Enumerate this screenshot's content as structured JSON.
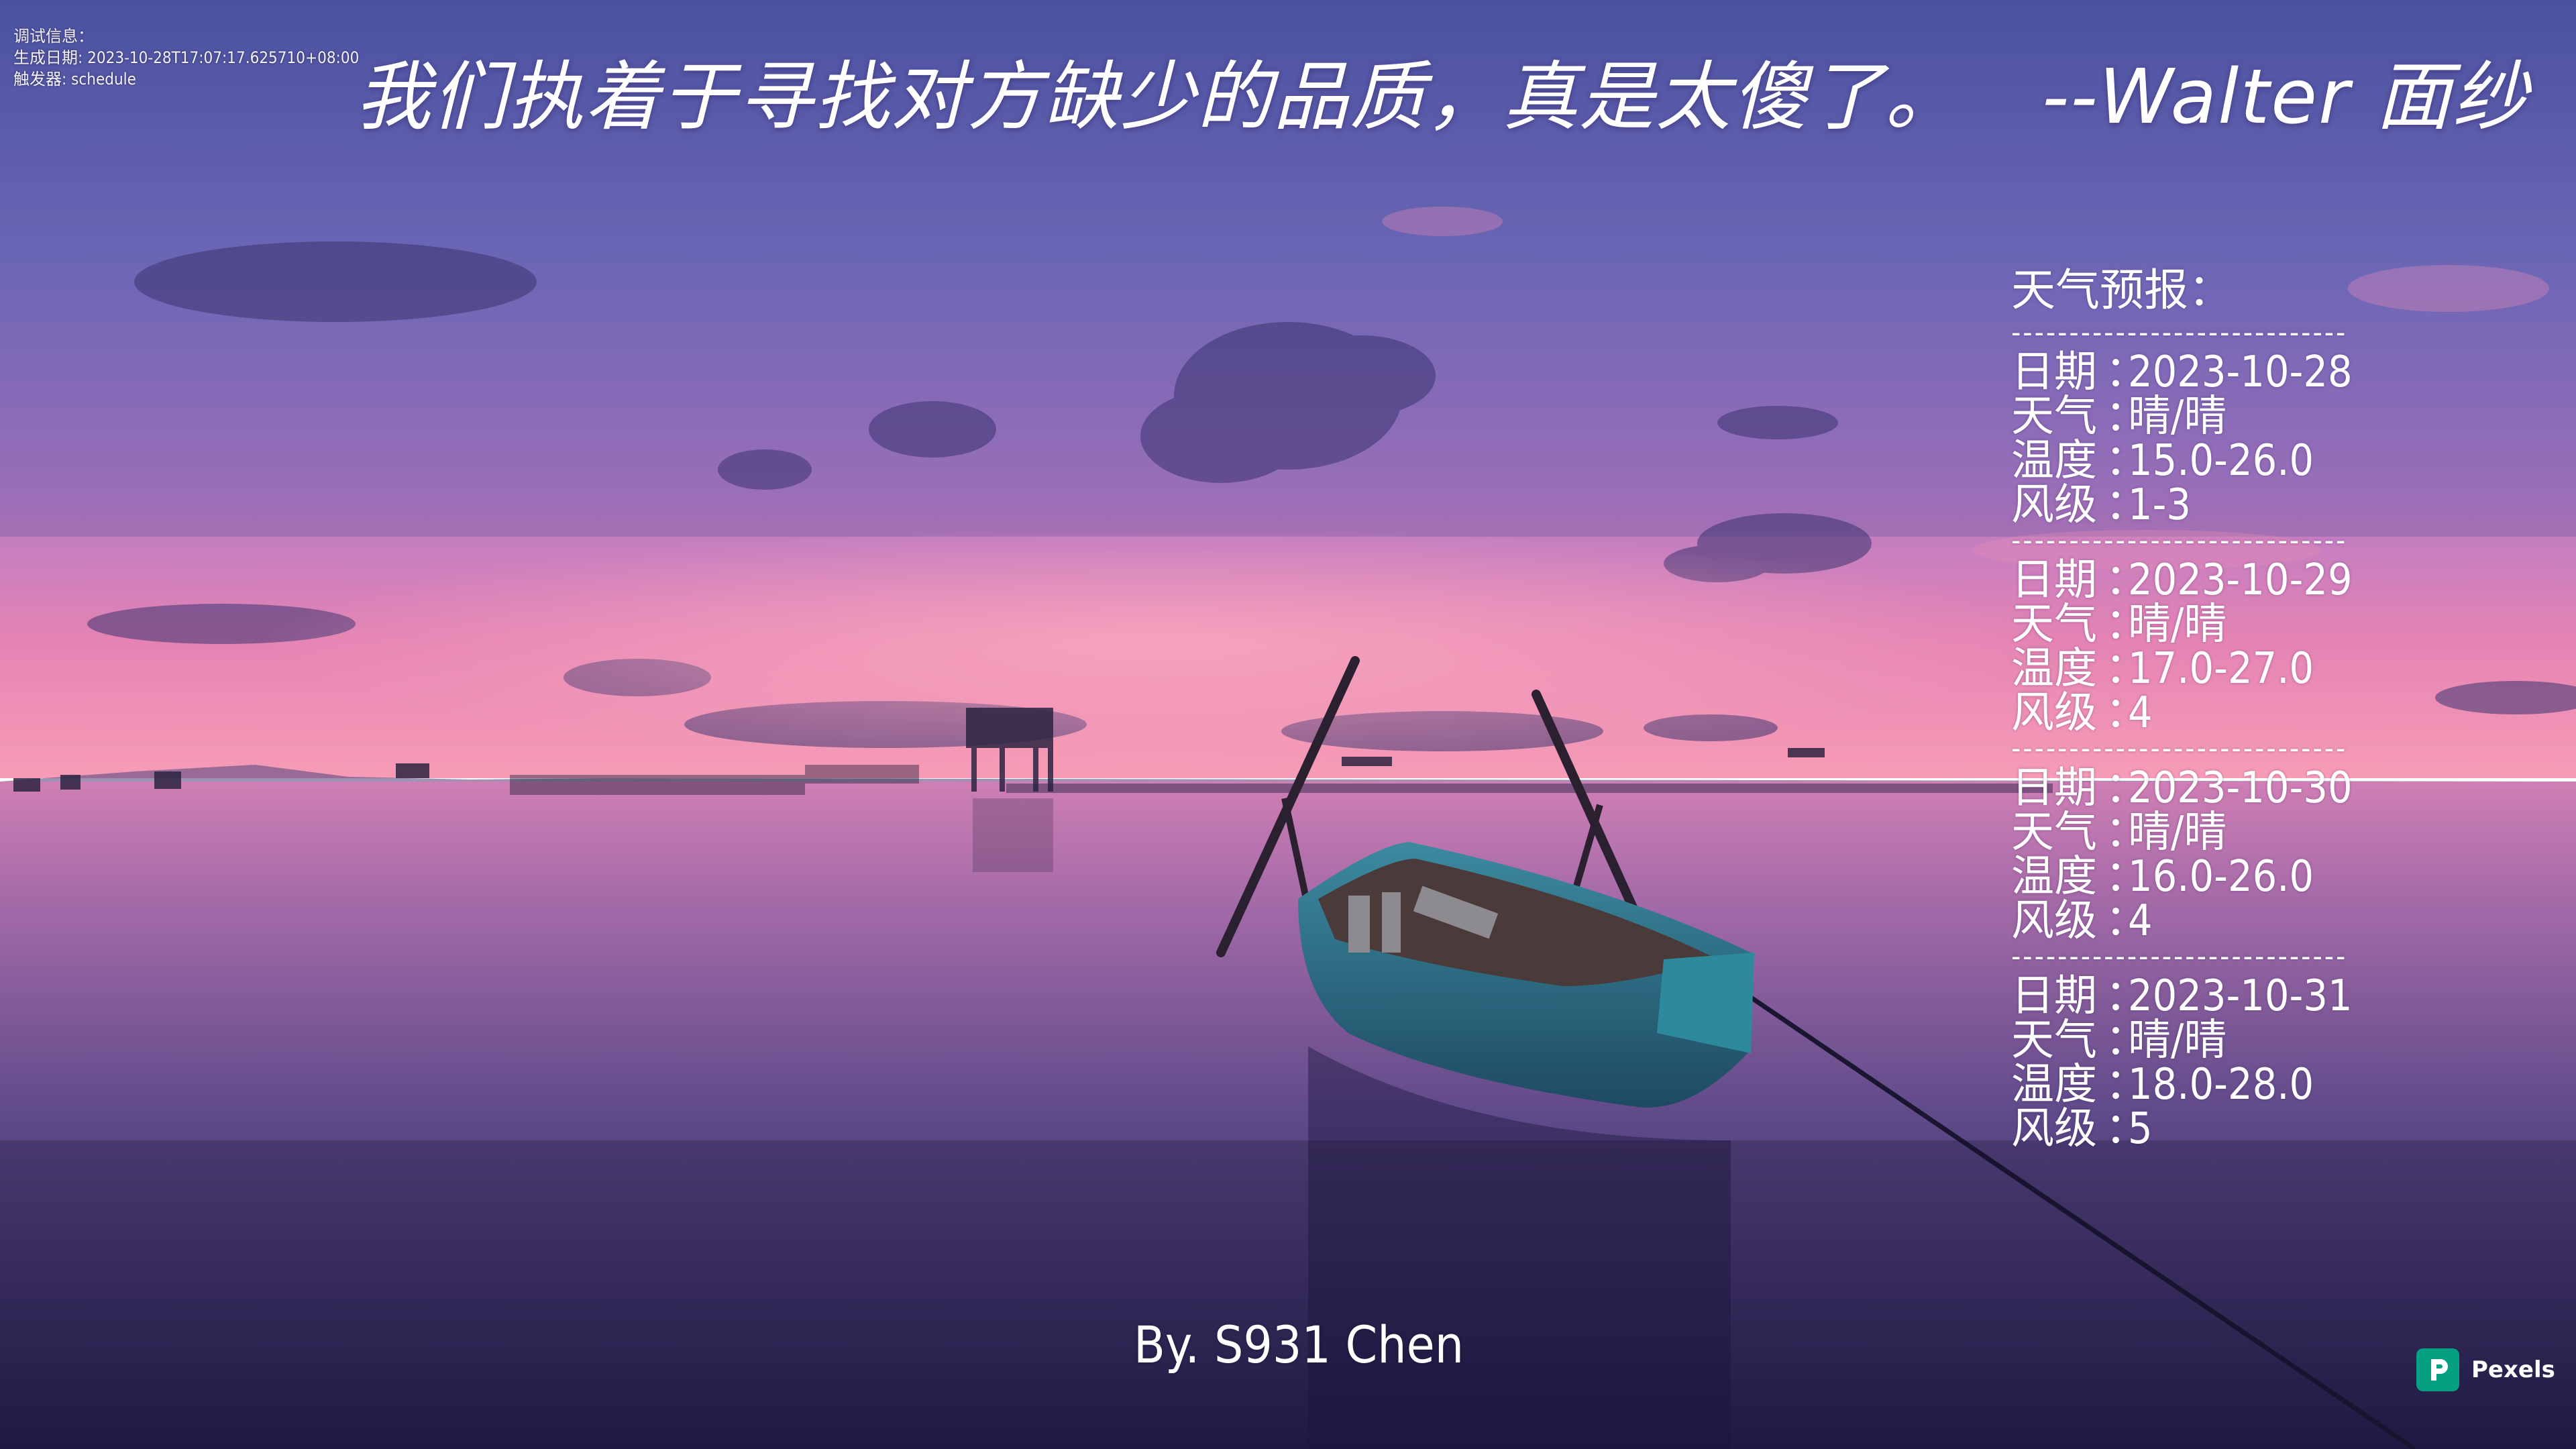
{
  "debug": {
    "title": "调试信息：",
    "generated_at": "生成日期: 2023-10-28T17:07:17.625710+08:00",
    "trigger": "触发器: schedule"
  },
  "quote": {
    "text": "我们执着于寻找对方缺少的品质，真是太傻了。",
    "attribution": "--Walter 面纱"
  },
  "forecast": {
    "heading": "天气预报：",
    "divider": "-----------------------------",
    "labels": {
      "date": "日期",
      "weather": "天气",
      "temperature": "温度",
      "wind": "风级",
      "colon": "："
    },
    "days": [
      {
        "date": "2023-10-28",
        "weather": "晴/晴",
        "temperature": "15.0-26.0",
        "wind": "1-3"
      },
      {
        "date": "2023-10-29",
        "weather": "晴/晴",
        "temperature": "17.0-27.0",
        "wind": "4"
      },
      {
        "date": "2023-10-30",
        "weather": "晴/晴",
        "temperature": "16.0-26.0",
        "wind": "4"
      },
      {
        "date": "2023-10-31",
        "weather": "晴/晴",
        "temperature": "18.0-28.0",
        "wind": "5"
      }
    ]
  },
  "byline": "By. S931 Chen",
  "watermark": {
    "name": "Pexels",
    "icon": "pexels-logo-icon",
    "color": "#05a081"
  },
  "background": {
    "scene": "sunset-lake-boat",
    "sky_top": "#5b5cb0",
    "sky_mid": "#9a76c8",
    "horizon": "#f07aa6",
    "water_dark": "#2a2456"
  }
}
